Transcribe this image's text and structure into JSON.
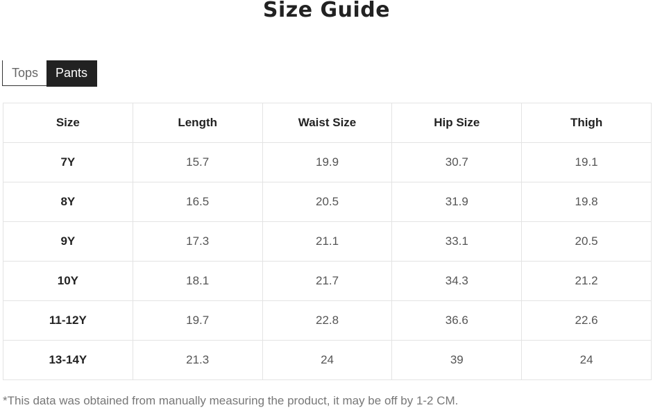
{
  "title": "Size Guide",
  "tabs": [
    {
      "label": "Tops",
      "active": false
    },
    {
      "label": "Pants",
      "active": true
    }
  ],
  "table": {
    "headers": [
      "Size",
      "Length",
      "Waist Size",
      "Hip Size",
      "Thigh"
    ],
    "rows": [
      [
        "7Y",
        "15.7",
        "19.9",
        "30.7",
        "19.1"
      ],
      [
        "8Y",
        "16.5",
        "20.5",
        "31.9",
        "19.8"
      ],
      [
        "9Y",
        "17.3",
        "21.1",
        "33.1",
        "20.5"
      ],
      [
        "10Y",
        "18.1",
        "21.7",
        "34.3",
        "21.2"
      ],
      [
        "11-12Y",
        "19.7",
        "22.8",
        "36.6",
        "22.6"
      ],
      [
        "13-14Y",
        "21.3",
        "24",
        "39",
        "24"
      ]
    ]
  },
  "note": "*This data was obtained from manually measuring the product, it may be off by 1-2 CM."
}
